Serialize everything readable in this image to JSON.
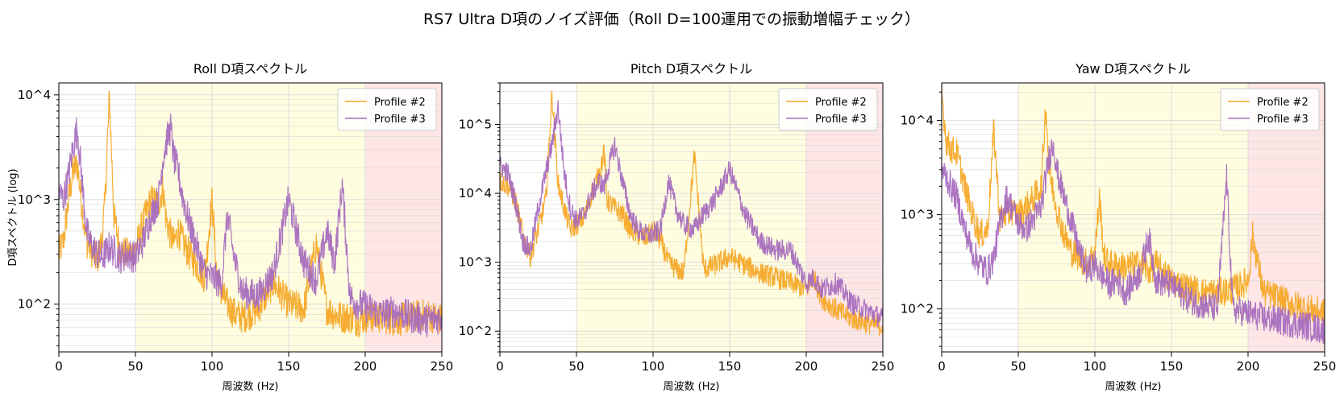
{
  "suptitle": "RS7 Ultra D項のノイズ評価（Roll D=100運用での振動増幅チェック）",
  "colors": {
    "profile2": "#f5a623",
    "profile3": "#a569bd",
    "band_mid": "#fffde0",
    "band_high": "#ffe6e6"
  },
  "chart_data": [
    {
      "type": "line",
      "title": "Roll D項スペクトル",
      "xlabel": "周波数 (Hz)",
      "ylabel": "D項スペクトル (log)",
      "xlim": [
        0,
        250
      ],
      "ylim": [
        35,
        13000
      ],
      "yscale": "log",
      "xticks": [
        "0",
        "50",
        "100",
        "150",
        "200",
        "250"
      ],
      "yticks": [
        "10^2",
        "10^3",
        "10^4"
      ],
      "grid": true,
      "legend": "top-right",
      "bands": [
        {
          "from": 50,
          "to": 200,
          "color": "band_mid"
        },
        {
          "from": 200,
          "to": 250,
          "color": "band_high"
        }
      ],
      "series": [
        {
          "name": "Profile #2",
          "color": "profile2",
          "x": [
            0,
            3,
            6,
            9,
            12,
            15,
            18,
            20,
            25,
            28,
            30,
            33,
            36,
            40,
            45,
            50,
            55,
            60,
            65,
            68,
            70,
            73,
            75,
            78,
            80,
            85,
            90,
            95,
            100,
            103,
            106,
            110,
            115,
            120,
            130,
            140,
            150,
            160,
            168,
            175,
            180,
            185,
            190,
            195,
            200,
            210,
            220,
            230,
            240,
            250
          ],
          "y": [
            300,
            400,
            900,
            1800,
            2200,
            900,
            400,
            350,
            260,
            400,
            900,
            9500,
            700,
            330,
            300,
            330,
            600,
            1000,
            900,
            1300,
            650,
            450,
            380,
            500,
            420,
            300,
            240,
            180,
            1000,
            200,
            130,
            100,
            80,
            75,
            90,
            160,
            100,
            90,
            380,
            90,
            80,
            75,
            75,
            70,
            75,
            75,
            70,
            75,
            80,
            70
          ]
        },
        {
          "name": "Profile #3",
          "color": "profile3",
          "x": [
            0,
            3,
            6,
            9,
            12,
            15,
            18,
            20,
            25,
            28,
            30,
            33,
            36,
            40,
            45,
            50,
            55,
            60,
            65,
            68,
            70,
            73,
            75,
            78,
            80,
            85,
            90,
            95,
            100,
            103,
            106,
            110,
            115,
            120,
            130,
            140,
            150,
            160,
            168,
            175,
            180,
            185,
            190,
            195,
            200,
            210,
            220,
            230,
            240,
            250
          ],
          "y": [
            1200,
            1000,
            1600,
            3000,
            4800,
            1600,
            500,
            400,
            300,
            280,
            300,
            350,
            320,
            280,
            300,
            280,
            400,
            700,
            1000,
            2500,
            3500,
            4800,
            2500,
            1800,
            1200,
            600,
            350,
            200,
            180,
            170,
            150,
            700,
            250,
            130,
            120,
            200,
            1000,
            250,
            170,
            500,
            250,
            1400,
            120,
            100,
            95,
            80,
            85,
            75,
            70,
            75
          ]
        }
      ]
    },
    {
      "type": "line",
      "title": "Pitch D項スペクトル",
      "xlabel": "周波数 (Hz)",
      "ylabel": "",
      "xlim": [
        0,
        250
      ],
      "ylim": [
        50,
        400000
      ],
      "yscale": "log",
      "xticks": [
        "0",
        "50",
        "100",
        "150",
        "200",
        "250"
      ],
      "yticks": [
        "10^2",
        "10^3",
        "10^4",
        "10^5"
      ],
      "grid": true,
      "legend": "top-right",
      "bands": [
        {
          "from": 50,
          "to": 200,
          "color": "band_mid"
        },
        {
          "from": 200,
          "to": 250,
          "color": "band_high"
        }
      ],
      "series": [
        {
          "name": "Profile #2",
          "color": "profile2",
          "x": [
            0,
            5,
            10,
            15,
            20,
            25,
            30,
            34,
            38,
            42,
            46,
            50,
            55,
            60,
            65,
            68,
            70,
            75,
            80,
            85,
            90,
            95,
            100,
            105,
            110,
            115,
            120,
            127,
            133,
            140,
            150,
            160,
            170,
            180,
            190,
            200,
            205,
            210,
            220,
            230,
            240,
            250
          ],
          "y": [
            15000,
            13000,
            8000,
            2500,
            1200,
            3000,
            8000,
            280000,
            14000,
            6000,
            3000,
            3500,
            4500,
            10000,
            20000,
            40000,
            8000,
            6000,
            5000,
            3000,
            2500,
            2200,
            3000,
            2000,
            1000,
            800,
            700,
            36000,
            800,
            900,
            1200,
            900,
            700,
            600,
            500,
            400,
            600,
            300,
            200,
            150,
            130,
            120
          ]
        },
        {
          "name": "Profile #3",
          "color": "profile3",
          "x": [
            0,
            5,
            10,
            15,
            20,
            25,
            30,
            34,
            38,
            42,
            46,
            50,
            55,
            60,
            65,
            68,
            70,
            75,
            80,
            85,
            90,
            95,
            100,
            105,
            110,
            115,
            120,
            127,
            133,
            140,
            150,
            160,
            170,
            180,
            190,
            200,
            205,
            210,
            220,
            230,
            240,
            250
          ],
          "y": [
            25000,
            20000,
            8000,
            2000,
            1500,
            6000,
            20000,
            50000,
            180000,
            20000,
            6000,
            4000,
            5000,
            10000,
            15000,
            12000,
            20000,
            50000,
            15000,
            5000,
            3000,
            2500,
            2500,
            3000,
            15000,
            6000,
            3500,
            3000,
            5000,
            8000,
            22000,
            5000,
            2000,
            1500,
            1500,
            500,
            600,
            400,
            500,
            250,
            200,
            150
          ]
        }
      ]
    },
    {
      "type": "line",
      "title": "Yaw D項スペクトル",
      "xlabel": "周波数 (Hz)",
      "ylabel": "",
      "xlim": [
        0,
        250
      ],
      "ylim": [
        35,
        25000
      ],
      "yscale": "log",
      "xticks": [
        "0",
        "50",
        "100",
        "150",
        "200",
        "250"
      ],
      "yticks": [
        "10^2",
        "10^3",
        "10^4"
      ],
      "grid": true,
      "legend": "top-right",
      "bands": [
        {
          "from": 50,
          "to": 200,
          "color": "band_mid"
        },
        {
          "from": 200,
          "to": 250,
          "color": "band_high"
        }
      ],
      "series": [
        {
          "name": "Profile #2",
          "color": "profile2",
          "x": [
            0,
            3,
            6,
            10,
            15,
            20,
            25,
            30,
            34,
            38,
            42,
            46,
            50,
            55,
            60,
            65,
            68,
            70,
            75,
            80,
            85,
            90,
            95,
            100,
            103,
            106,
            110,
            120,
            130,
            135,
            140,
            150,
            160,
            170,
            180,
            190,
            200,
            203,
            210,
            220,
            230,
            240,
            250
          ],
          "y": [
            20000,
            6000,
            5000,
            4500,
            2000,
            1000,
            600,
            700,
            8000,
            900,
            1000,
            1100,
            1000,
            1200,
            1500,
            2000,
            15000,
            3000,
            1200,
            600,
            400,
            350,
            300,
            400,
            1500,
            350,
            300,
            280,
            300,
            250,
            300,
            200,
            170,
            150,
            150,
            160,
            200,
            600,
            150,
            130,
            110,
            100,
            90
          ]
        },
        {
          "name": "Profile #3",
          "color": "profile3",
          "x": [
            0,
            3,
            6,
            10,
            15,
            20,
            25,
            30,
            34,
            38,
            42,
            46,
            50,
            55,
            60,
            65,
            68,
            70,
            73,
            75,
            80,
            85,
            90,
            95,
            100,
            105,
            110,
            115,
            120,
            130,
            135,
            140,
            150,
            160,
            170,
            180,
            186,
            190,
            200,
            210,
            220,
            230,
            240,
            250
          ],
          "y": [
            3000,
            2500,
            2000,
            1500,
            700,
            400,
            300,
            250,
            350,
            800,
            1500,
            1200,
            800,
            700,
            900,
            1200,
            2500,
            4000,
            6000,
            3000,
            1500,
            800,
            400,
            250,
            300,
            220,
            180,
            200,
            150,
            250,
            600,
            200,
            180,
            130,
            110,
            100,
            2500,
            100,
            90,
            80,
            75,
            70,
            65,
            60
          ]
        }
      ]
    }
  ]
}
